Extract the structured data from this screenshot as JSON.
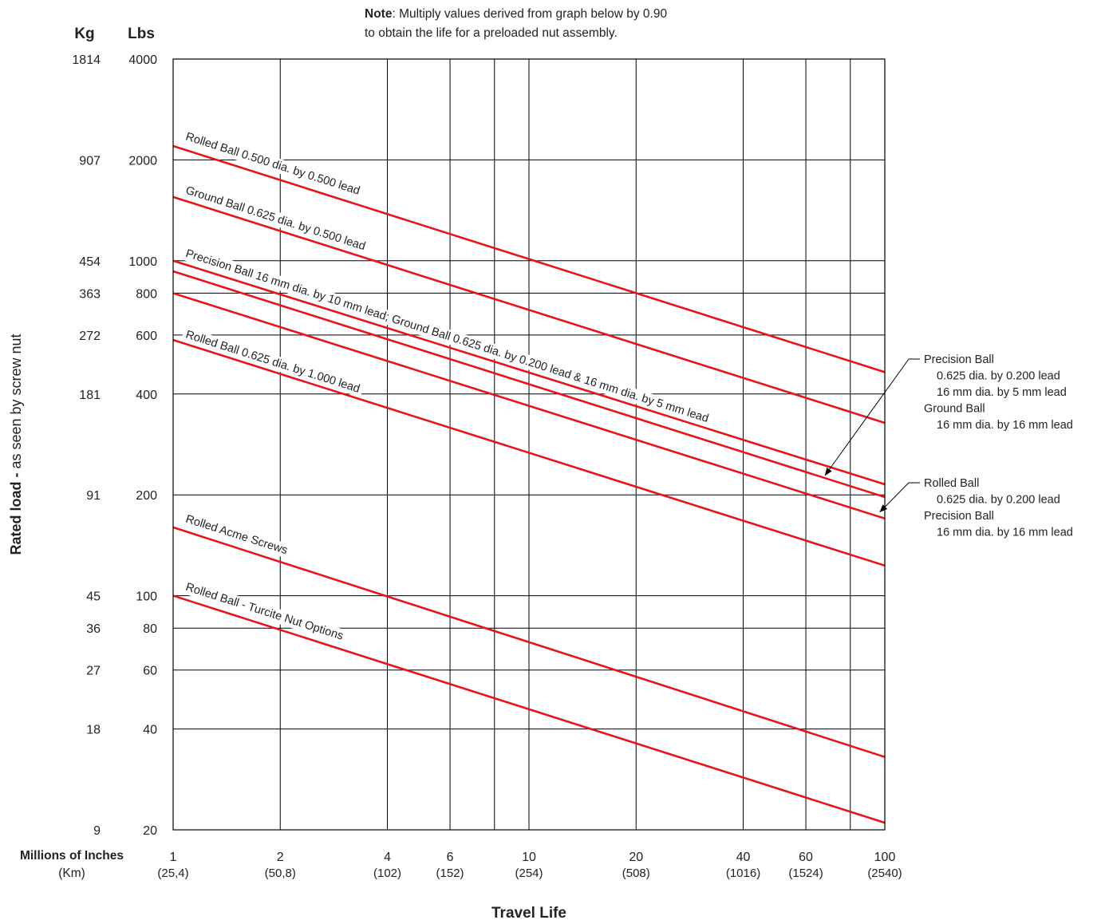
{
  "note": {
    "bold": "Note",
    "line1": ": Multiply values derived from graph below by 0.90",
    "line2": "to obtain the life for a preloaded nut assembly."
  },
  "chart_data": {
    "type": "line",
    "x_scale": "log",
    "y_scale": "log",
    "xlim": [
      1,
      100
    ],
    "ylim": [
      20,
      4000
    ],
    "grid": true,
    "xlabel": "Travel Life",
    "ylabel_bold": "Rated load - ",
    "ylabel_rest": "as seen by screw nut",
    "x_axis_caption": {
      "main": "Millions of Inches",
      "sub": "(Km)"
    },
    "y_axis_headers": {
      "kg": "Kg",
      "lbs": "Lbs"
    },
    "x_ticks": [
      {
        "value": 1,
        "label": "1",
        "sub": "(25,4)"
      },
      {
        "value": 2,
        "label": "2",
        "sub": "(50,8)"
      },
      {
        "value": 4,
        "label": "4",
        "sub": "(102)"
      },
      {
        "value": 6,
        "label": "6",
        "sub": "(152)"
      },
      {
        "value": 8,
        "label": "",
        "sub": ""
      },
      {
        "value": 10,
        "label": "10",
        "sub": "(254)"
      },
      {
        "value": 20,
        "label": "20",
        "sub": "(508)"
      },
      {
        "value": 40,
        "label": "40",
        "sub": "(1016)"
      },
      {
        "value": 60,
        "label": "60",
        "sub": "(1524)"
      },
      {
        "value": 80,
        "label": "",
        "sub": ""
      },
      {
        "value": 100,
        "label": "100",
        "sub": "(2540)"
      }
    ],
    "y_ticks": [
      {
        "value": 4000,
        "lbs": "4000",
        "kg": "1814"
      },
      {
        "value": 2000,
        "lbs": "2000",
        "kg": "907"
      },
      {
        "value": 1000,
        "lbs": "1000",
        "kg": "454"
      },
      {
        "value": 800,
        "lbs": "800",
        "kg": "363"
      },
      {
        "value": 600,
        "lbs": "600",
        "kg": "272"
      },
      {
        "value": 400,
        "lbs": "400",
        "kg": "181"
      },
      {
        "value": 200,
        "lbs": "200",
        "kg": "91"
      },
      {
        "value": 100,
        "lbs": "100",
        "kg": "45"
      },
      {
        "value": 80,
        "lbs": "80",
        "kg": "36"
      },
      {
        "value": 60,
        "lbs": "60",
        "kg": "27"
      },
      {
        "value": 40,
        "lbs": "40",
        "kg": "18"
      },
      {
        "value": 20,
        "lbs": "20",
        "kg": "9"
      }
    ],
    "series": [
      {
        "x": [
          1,
          100
        ],
        "y": [
          2200,
          465
        ]
      },
      {
        "x": [
          1,
          100
        ],
        "y": [
          1550,
          328
        ]
      },
      {
        "x": [
          1,
          100
        ],
        "y": [
          1000,
          215
        ]
      },
      {
        "x": [
          1,
          100
        ],
        "y": [
          930,
          197
        ]
      },
      {
        "x": [
          1,
          100
        ],
        "y": [
          800,
          170
        ]
      },
      {
        "x": [
          1,
          100
        ],
        "y": [
          580,
          123
        ]
      },
      {
        "x": [
          1,
          100
        ],
        "y": [
          160,
          33
        ]
      },
      {
        "x": [
          1,
          100
        ],
        "y": [
          100,
          21
        ]
      }
    ],
    "inline_labels": [
      {
        "text": "Rolled Ball 0.500 dia. by 0.500 lead",
        "x": 1.08,
        "y": 2300
      },
      {
        "text": "Ground Ball 0.625 dia. by 0.500 lead",
        "x": 1.08,
        "y": 1590
      },
      {
        "text": "Precision Ball 16 mm dia. by 10 mm lead; Ground Ball 0.625 dia. by 0.200 lead & 16 mm dia. by 5 mm lead",
        "x": 1.08,
        "y": 1030
      },
      {
        "text": "Rolled Ball 0.625 dia. by 1.000 lead",
        "x": 1.08,
        "y": 590
      },
      {
        "text": "Rolled Acme Screws",
        "x": 1.08,
        "y": 166
      },
      {
        "text": "Rolled Ball - Turcite Nut Options",
        "x": 1.08,
        "y": 104
      }
    ],
    "callouts": [
      {
        "lines": [
          "Precision Ball",
          "0.625 dia. by 0.200 lead",
          "16 mm dia. by 5 mm lead",
          "Ground Ball",
          "16 mm dia. by 16 mm lead"
        ],
        "indent": [
          false,
          true,
          true,
          false,
          true
        ],
        "arrow_to": {
          "x": 68,
          "y": 229
        }
      },
      {
        "lines": [
          "Rolled Ball",
          "0.625 dia. by 0.200 lead",
          "Precision Ball",
          "16 mm dia. by 16 mm lead"
        ],
        "indent": [
          false,
          true,
          false,
          true
        ],
        "arrow_to": {
          "x": 97,
          "y": 178
        }
      }
    ]
  }
}
